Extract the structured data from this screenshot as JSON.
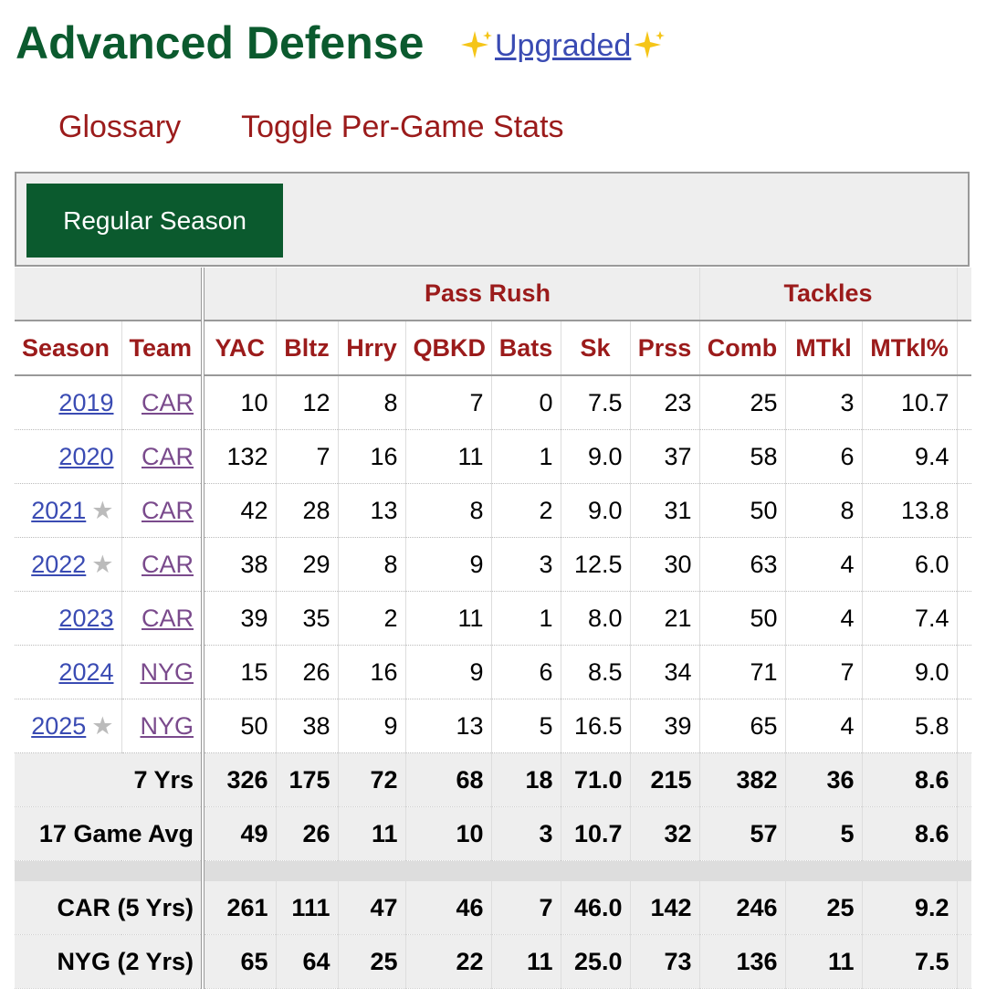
{
  "header": {
    "title": "Advanced Defense",
    "badge": "Upgraded"
  },
  "nav": [
    "Glossary",
    "Toggle Per-Game Stats"
  ],
  "tab": "Regular Season",
  "table": {
    "groups": [
      "Pass Rush",
      "Tackles"
    ],
    "columns": [
      "Season",
      "Team",
      "YAC",
      "Bltz",
      "Hrry",
      "QBKD",
      "Bats",
      "Sk",
      "Prss",
      "Comb",
      "MTkl",
      "MTkl%"
    ],
    "rows": [
      {
        "season": "2019",
        "team": "CAR",
        "cells": [
          "10",
          "12",
          "8",
          "7",
          "0",
          "7.5",
          "23",
          "25",
          "3",
          "10.7"
        ]
      },
      {
        "season": "2020",
        "team": "CAR",
        "cells": [
          "132",
          "7",
          "16",
          "11",
          "1",
          "9.0",
          "37",
          "58",
          "6",
          "9.4"
        ]
      },
      {
        "season": "2021",
        "award": "★",
        "team": "CAR",
        "cells": [
          "42",
          "28",
          "13",
          "8",
          "2",
          "9.0",
          "31",
          "50",
          "8",
          "13.8"
        ]
      },
      {
        "season": "2022",
        "award": "★",
        "team": "CAR",
        "cells": [
          "38",
          "29",
          "8",
          "9",
          "3",
          "12.5",
          "30",
          "63",
          "4",
          "6.0"
        ]
      },
      {
        "season": "2023",
        "team": "CAR",
        "cells": [
          "39",
          "35",
          "2",
          "11",
          "1",
          "8.0",
          "21",
          "50",
          "4",
          "7.4"
        ]
      },
      {
        "season": "2024",
        "team": "NYG",
        "cells": [
          "15",
          "26",
          "16",
          "9",
          "6",
          "8.5",
          "34",
          "71",
          "7",
          "9.0"
        ]
      },
      {
        "season": "2025",
        "award": "★",
        "team": "NYG",
        "cells": [
          "50",
          "38",
          "9",
          "13",
          "5",
          "16.5",
          "39",
          "65",
          "4",
          "5.8"
        ]
      }
    ],
    "totals": [
      {
        "label": "7 Yrs",
        "cells": [
          "326",
          "175",
          "72",
          "68",
          "18",
          "71.0",
          "215",
          "382",
          "36",
          "8.6"
        ]
      },
      {
        "label": "17 Game Avg",
        "cells": [
          "49",
          "26",
          "11",
          "10",
          "3",
          "10.7",
          "32",
          "57",
          "5",
          "8.6"
        ]
      }
    ],
    "splits": [
      {
        "label": "CAR (5 Yrs)",
        "cells": [
          "261",
          "111",
          "47",
          "46",
          "7",
          "46.0",
          "142",
          "246",
          "25",
          "9.2"
        ]
      },
      {
        "label": "NYG (2 Yrs)",
        "cells": [
          "65",
          "64",
          "25",
          "22",
          "11",
          "25.0",
          "73",
          "136",
          "11",
          "7.5"
        ]
      }
    ]
  }
}
